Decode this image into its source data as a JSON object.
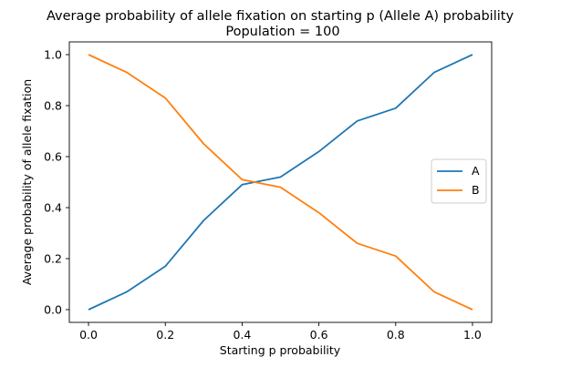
{
  "chart_data": {
    "type": "line",
    "title": "Average probability of allele fixation on starting p (Allele A) probability",
    "subtitle": "Population = 100",
    "xlabel": "Starting p probability",
    "ylabel": "Average probability of allele fixation",
    "xlim": [
      -0.05,
      1.05
    ],
    "ylim": [
      -0.05,
      1.05
    ],
    "xticks": [
      "0.0",
      "0.2",
      "0.4",
      "0.6",
      "0.8",
      "1.0"
    ],
    "yticks": [
      "0.0",
      "0.2",
      "0.4",
      "0.6",
      "0.8",
      "1.0"
    ],
    "grid": false,
    "legend_position": "center-right",
    "x": [
      0.0,
      0.1,
      0.2,
      0.3,
      0.4,
      0.5,
      0.6,
      0.7,
      0.8,
      0.9,
      1.0
    ],
    "series": [
      {
        "name": "A",
        "color": "#1f77b4",
        "values": [
          0.0,
          0.07,
          0.17,
          0.35,
          0.49,
          0.52,
          0.62,
          0.74,
          0.79,
          0.93,
          1.0
        ]
      },
      {
        "name": "B",
        "color": "#ff7f0e",
        "values": [
          1.0,
          0.93,
          0.83,
          0.65,
          0.51,
          0.48,
          0.38,
          0.26,
          0.21,
          0.07,
          0.0
        ]
      }
    ]
  }
}
